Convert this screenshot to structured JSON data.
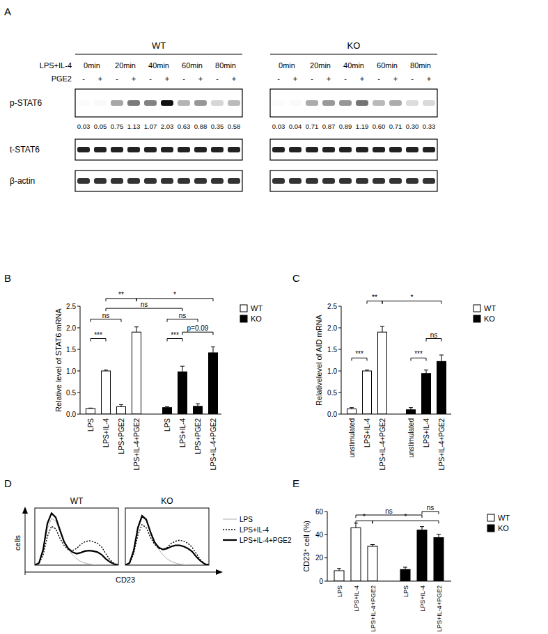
{
  "chart_data": [
    {
      "type": "blot",
      "panel_label": "A",
      "treatment_label": "LPS+IL-4",
      "pge2_label": "PGE2",
      "timepoints": [
        "0min",
        "20min",
        "40min",
        "60min",
        "80min"
      ],
      "pge2_states": [
        "-",
        "+"
      ],
      "bands": [
        "p-STAT6",
        "t-STAT6",
        "β-actin"
      ],
      "groups": [
        {
          "name": "WT",
          "values": [
            0.03,
            0.05,
            0.75,
            1.13,
            1.07,
            2.03,
            0.63,
            0.88,
            0.35,
            0.58
          ],
          "value_labels": [
            "0.03",
            "0.05",
            "0.75",
            "1.13",
            "1.07",
            "2.03",
            "0.63",
            "0.88",
            "0.35",
            "0.58"
          ]
        },
        {
          "name": "KO",
          "values": [
            0.03,
            0.04,
            0.71,
            0.87,
            0.89,
            1.19,
            0.6,
            0.71,
            0.3,
            0.33
          ],
          "value_labels": [
            "0.03",
            "0.04",
            "0.71",
            "0.87",
            "0.89",
            "1.19",
            "0.60",
            "0.71",
            "0.30",
            "0.33"
          ]
        }
      ]
    },
    {
      "type": "bar",
      "panel_label": "B",
      "y_label": "Relative level of STAT6 mRNA",
      "categories": [
        "LPS",
        "LPS+IL-4",
        "LPS+PGE2",
        "LPS+IL-4+PGE2"
      ],
      "series": [
        {
          "name": "WT",
          "color": "#ffffff",
          "values": [
            0.13,
            1.0,
            0.17,
            1.9
          ],
          "errors": [
            0.01,
            0.02,
            0.05,
            0.12
          ]
        },
        {
          "name": "KO",
          "color": "#000000",
          "values": [
            0.15,
            0.98,
            0.18,
            1.42
          ],
          "errors": [
            0.02,
            0.13,
            0.06,
            0.14
          ]
        }
      ],
      "ylim": [
        0,
        2.5
      ],
      "yticks": [
        {
          "value": 0,
          "label": "0.0"
        },
        0.5,
        {
          "value": 1,
          "label": "1.0"
        },
        1.5,
        {
          "value": 2,
          "label": "2.0"
        },
        2.5
      ],
      "legend": "right",
      "annotations": [
        {
          "text": "ns",
          "from": [
            0,
            0
          ],
          "to": [
            0,
            2
          ],
          "y": 2.2
        },
        {
          "text": "***",
          "from": [
            0,
            0
          ],
          "to": [
            0,
            1
          ],
          "y": 1.75
        },
        {
          "text": "ns",
          "from": [
            0,
            1
          ],
          "to": [
            1,
            1
          ],
          "y": 2.45
        },
        {
          "text": "**",
          "from": [
            0,
            1
          ],
          "to": [
            0,
            3
          ],
          "y": 2.68
        },
        {
          "text": "*",
          "from": [
            0,
            3
          ],
          "to": [
            1,
            3
          ],
          "y": 2.68
        },
        {
          "text": "ns",
          "from": [
            1,
            0
          ],
          "to": [
            1,
            2
          ],
          "y": 2.2
        },
        {
          "text": "***",
          "from": [
            1,
            0
          ],
          "to": [
            1,
            1
          ],
          "y": 1.75
        },
        {
          "text": "p=0.09",
          "from": [
            1,
            1
          ],
          "to": [
            1,
            3
          ],
          "y": 1.9
        }
      ]
    },
    {
      "type": "bar",
      "panel_label": "C",
      "y_label": "Relativelevel of AID mRNA",
      "categories": [
        "unstimulated",
        "LPS+IL-4",
        "LPS+IL-4+PGE2"
      ],
      "series": [
        {
          "name": "WT",
          "color": "#ffffff",
          "values": [
            0.12,
            1.0,
            1.9
          ],
          "errors": [
            0.03,
            0.02,
            0.13
          ]
        },
        {
          "name": "KO",
          "color": "#000000",
          "values": [
            0.1,
            0.94,
            1.22
          ],
          "errors": [
            0.05,
            0.08,
            0.15
          ]
        }
      ],
      "ylim": [
        0,
        2.5
      ],
      "yticks": [
        {
          "value": 0,
          "label": "0.0"
        },
        0.5,
        {
          "value": 1,
          "label": "1.0"
        },
        1.5,
        {
          "value": 2,
          "label": "2.0"
        },
        2.5
      ],
      "legend": "right",
      "annotations": [
        {
          "text": "***",
          "from": [
            0,
            0
          ],
          "to": [
            0,
            1
          ],
          "y": 1.3
        },
        {
          "text": "**",
          "from": [
            0,
            1
          ],
          "to": [
            0,
            2
          ],
          "y": 2.62
        },
        {
          "text": "*",
          "from": [
            0,
            2
          ],
          "to": [
            1,
            2
          ],
          "y": 2.62
        },
        {
          "text": "***",
          "from": [
            1,
            0
          ],
          "to": [
            1,
            1
          ],
          "y": 1.3
        },
        {
          "text": "ns",
          "from": [
            1,
            1
          ],
          "to": [
            1,
            2
          ],
          "y": 1.75
        }
      ]
    },
    {
      "type": "line",
      "panel_label": "D",
      "x_label": "CD23",
      "y_label": "cells",
      "groups": [
        "WT",
        "KO"
      ],
      "x": [
        0,
        5,
        10,
        15,
        20,
        25,
        30,
        35,
        40,
        45,
        50,
        55,
        60,
        65,
        70,
        75,
        80,
        85,
        90,
        95,
        100
      ],
      "xlim": [
        0,
        100
      ],
      "ylim": [
        0,
        110
      ],
      "tick_labels": false,
      "legend": "right",
      "series": [
        {
          "name": "LPS",
          "color": "#b0b0b0",
          "line_style": "thin",
          "values": [
            [
              0,
              5,
              30,
              70,
              90,
              85,
              65,
              45,
              30,
              20,
              12,
              7,
              4,
              2,
              1,
              0,
              0,
              0,
              0,
              0,
              0
            ],
            [
              0,
              5,
              28,
              68,
              92,
              86,
              66,
              46,
              30,
              20,
              12,
              7,
              4,
              2,
              1,
              0,
              0,
              0,
              0,
              0,
              0
            ]
          ]
        },
        {
          "name": "LPS+IL-4",
          "color": "#000000",
          "line_style": "dotted",
          "values": [
            [
              0,
              3,
              20,
              55,
              75,
              70,
              52,
              38,
              30,
              28,
              32,
              40,
              45,
              47,
              45,
              42,
              35,
              22,
              10,
              3,
              0
            ],
            [
              0,
              3,
              22,
              58,
              78,
              72,
              54,
              40,
              32,
              30,
              34,
              42,
              46,
              48,
              46,
              42,
              34,
              22,
              10,
              3,
              0
            ]
          ]
        },
        {
          "name": "LPS+IL-4+PGE2",
          "color": "#000000",
          "line_style": "thick",
          "values": [
            [
              0,
              4,
              30,
              80,
              100,
              92,
              68,
              45,
              32,
              25,
              22,
              24,
              27,
              28,
              27,
              25,
              20,
              12,
              6,
              2,
              0
            ],
            [
              0,
              4,
              28,
              72,
              95,
              88,
              64,
              44,
              34,
              30,
              32,
              36,
              38,
              38,
              36,
              32,
              26,
              16,
              8,
              2,
              0
            ]
          ]
        }
      ]
    },
    {
      "type": "bar",
      "panel_label": "E",
      "y_label": "CD23⁺ cell (%)",
      "categories": [
        "LPS",
        "LPS+IL-4",
        "LPS+IL-4+PGE2"
      ],
      "series": [
        {
          "name": "WT",
          "color": "#ffffff",
          "values": [
            9,
            46,
            30
          ],
          "errors": [
            2,
            4,
            1.5
          ]
        },
        {
          "name": "KO",
          "color": "#000000",
          "values": [
            10,
            44,
            37.5
          ],
          "errors": [
            2,
            3,
            3
          ]
        }
      ],
      "ylim": [
        0,
        60
      ],
      "yticks": [
        0,
        20,
        40,
        60
      ],
      "legend": "right",
      "annotations": [
        {
          "text": "*",
          "from": [
            0,
            1
          ],
          "to": [
            0,
            2
          ],
          "y": 52
        },
        {
          "text": "*",
          "from": [
            0,
            2
          ],
          "to": [
            1,
            2
          ],
          "y": 52
        },
        {
          "text": "ns",
          "from": [
            0,
            1
          ],
          "to": [
            1,
            1
          ],
          "y": 57
        },
        {
          "text": "ns",
          "from": [
            1,
            1
          ],
          "to": [
            1,
            2
          ],
          "y": 60
        }
      ]
    }
  ]
}
